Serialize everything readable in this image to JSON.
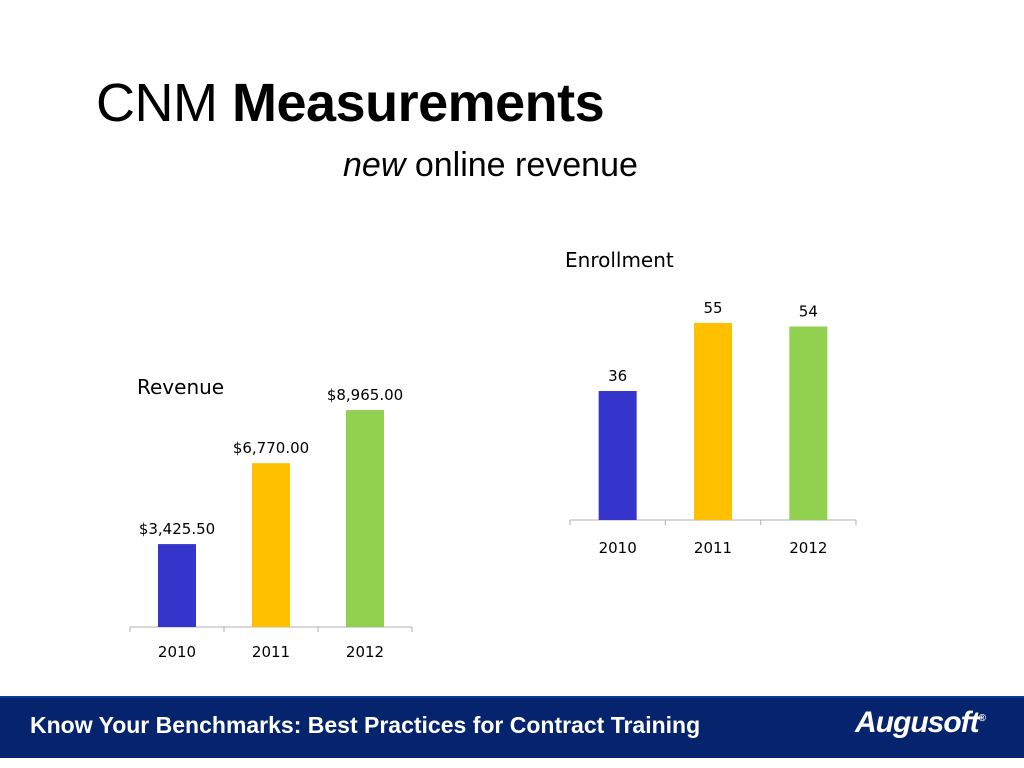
{
  "title": {
    "prefix": "CNM",
    "bold": "Measurements"
  },
  "subtitle": {
    "em": "new",
    "rest": "online revenue"
  },
  "footer": {
    "text": "Know Your Benchmarks: Best Practices for Contract Training",
    "logo": "Augusoft",
    "logo_mark": "®"
  },
  "colors": {
    "footer_bg": "#06246e",
    "bar_2010": "#3535cc",
    "bar_2011": "#ffc000",
    "bar_2012": "#92d050"
  },
  "chart_data": [
    {
      "id": "revenue",
      "type": "bar",
      "title": "Revenue",
      "categories": [
        "2010",
        "2011",
        "2012"
      ],
      "values": [
        3425.5,
        6770,
        8965
      ],
      "value_labels": [
        "$3,425.50",
        "$6,770.00",
        "$8,965.00"
      ],
      "colors": [
        "#3535cc",
        "#ffc000",
        "#92d050"
      ],
      "ylim": [
        0,
        10000
      ],
      "grid": false,
      "legend": "none"
    },
    {
      "id": "enrollment",
      "type": "bar",
      "title": "Enrollment",
      "categories": [
        "2010",
        "2011",
        "2012"
      ],
      "values": [
        36,
        55,
        54
      ],
      "value_labels": [
        "36",
        "55",
        "54"
      ],
      "colors": [
        "#3535cc",
        "#ffc000",
        "#92d050"
      ],
      "ylim": [
        0,
        60
      ],
      "grid": false,
      "legend": "none"
    }
  ]
}
